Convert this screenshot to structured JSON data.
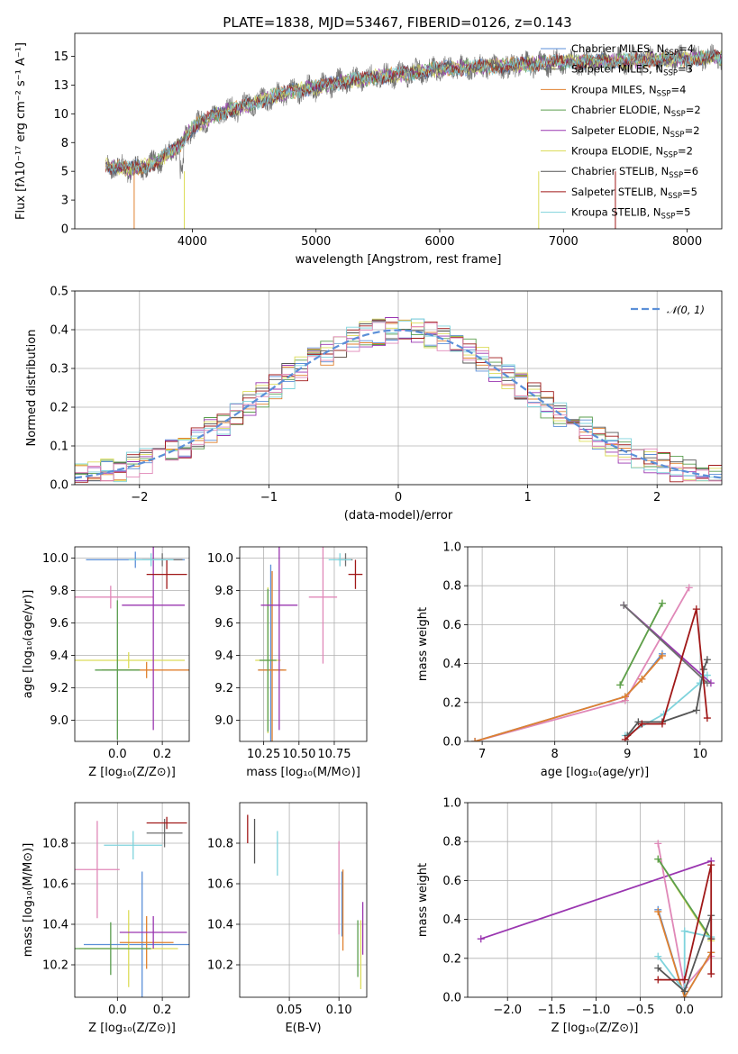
{
  "colors": [
    "#5b8fd8",
    "#6e6e6e",
    "#e0812f",
    "#5a9e4e",
    "#9a36b0",
    "#dcdc5a",
    "#555555",
    "#a01818",
    "#7fd3dc",
    "#e088b8"
  ],
  "chart_data": [
    {
      "id": "spectrum",
      "type": "line",
      "title": "PLATE=1838, MJD=53467, FIBERID=0126, z=0.143",
      "xlabel": "wavelength [Angstrom, rest frame]",
      "ylabel": "Flux [fλ10⁻¹⁷ erg cm⁻² s⁻¹ A⁻¹]",
      "xlim": [
        3050,
        8280
      ],
      "ylim": [
        0,
        17
      ],
      "xticks": [
        4000,
        5000,
        6000,
        7000,
        8000
      ],
      "yticks": [
        0.0,
        2.5,
        5.0,
        7.5,
        10.0,
        12.5,
        15.0
      ],
      "continuum_x": [
        3300,
        3500,
        3700,
        3900,
        4000,
        4200,
        4400,
        4600,
        4800,
        5000,
        5200,
        5500,
        5800,
        6000,
        6500,
        7000,
        7500,
        8000,
        8280
      ],
      "continuum_y": [
        5.5,
        5.2,
        5.7,
        7.3,
        8.8,
        10.0,
        10.6,
        11.3,
        12.0,
        12.3,
        12.8,
        13.2,
        13.6,
        13.9,
        14.2,
        14.5,
        14.6,
        14.8,
        14.9
      ],
      "legend": [
        {
          "name": "Chabrier MILES, N",
          "sub": "SSP",
          "n": "=4"
        },
        {
          "name": "Salpeter MILES, N",
          "sub": "SSP",
          "n": "=3"
        },
        {
          "name": "Kroupa MILES, N",
          "sub": "SSP",
          "n": "=4"
        },
        {
          "name": "Chabrier ELODIE, N",
          "sub": "SSP",
          "n": "=2"
        },
        {
          "name": "Salpeter ELODIE, N",
          "sub": "SSP",
          "n": "=2"
        },
        {
          "name": "Kroupa ELODIE, N",
          "sub": "SSP",
          "n": "=2"
        },
        {
          "name": "Chabrier STELIB, N",
          "sub": "SSP",
          "n": "=6"
        },
        {
          "name": "Salpeter STELIB, N",
          "sub": "SSP",
          "n": "=5"
        },
        {
          "name": "Kroupa STELIB, N",
          "sub": "SSP",
          "n": "=5"
        }
      ]
    },
    {
      "id": "residuals",
      "type": "histogram",
      "xlabel": "(data-model)/error",
      "ylabel": "Normed distribution",
      "xlim": [
        -2.5,
        2.5
      ],
      "ylim": [
        0,
        0.5
      ],
      "xticks": [
        -2,
        -1,
        0,
        1,
        2
      ],
      "yticks": [
        0.0,
        0.1,
        0.2,
        0.3,
        0.4,
        0.5
      ],
      "bin_width": 0.1,
      "legend_label": "𝒩(0, 1)"
    },
    {
      "id": "age-vs-Z",
      "type": "errorbar",
      "xlabel": "Z [log₁₀(Z/Z⊙)]",
      "ylabel": "age  [log₁₀(age/yr)]",
      "xlim": [
        -0.19,
        0.32
      ],
      "ylim": [
        8.87,
        10.07
      ],
      "xticks": [
        0.0,
        0.2
      ],
      "yticks": [
        9.0,
        9.2,
        9.4,
        9.6,
        9.8,
        10.0
      ],
      "points": [
        {
          "c": 0,
          "x": 0.08,
          "y": 9.99,
          "xe": 0.22,
          "ye": 0.05
        },
        {
          "c": 9,
          "x": -0.03,
          "y": 9.76,
          "xe": 0.19,
          "ye": 0.07
        },
        {
          "c": 5,
          "x": 0.05,
          "y": 9.37,
          "xe": 0.25,
          "ye": 0.05
        },
        {
          "c": 2,
          "x": 0.13,
          "y": 9.31,
          "xe": 0.2,
          "ye": 0.05
        },
        {
          "c": 3,
          "x": 0.0,
          "y": 9.31,
          "xe": 0.1,
          "ye": 0.43
        },
        {
          "c": 4,
          "x": 0.16,
          "y": 9.71,
          "xe": 0.14,
          "ye": 0.77
        },
        {
          "c": 1,
          "x": 0.2,
          "y": 9.99,
          "xe": 0.09,
          "ye": 0.04
        },
        {
          "c": 7,
          "x": 0.22,
          "y": 9.9,
          "xe": 0.09,
          "ye": 0.09
        },
        {
          "c": 8,
          "x": 0.15,
          "y": 9.99,
          "xe": 0.1,
          "ye": 0.04
        }
      ]
    },
    {
      "id": "age-vs-mass",
      "type": "errorbar",
      "xlabel": "mass [log₁₀(M/M⊙)]",
      "ylabel": "",
      "xlim": [
        10.08,
        10.98
      ],
      "ylim": [
        8.87,
        10.07
      ],
      "xticks": [
        10.25,
        10.5,
        10.75
      ],
      "yticks": [
        9.0,
        9.2,
        9.4,
        9.6,
        9.8,
        10.0
      ],
      "points": [
        {
          "c": 0,
          "x": 10.3,
          "y": 9.31,
          "xe": 0.09,
          "ye": 0.65
        },
        {
          "c": 9,
          "x": 10.67,
          "y": 9.76,
          "xe": 0.1,
          "ye": 0.41
        },
        {
          "c": 5,
          "x": 10.28,
          "y": 9.37,
          "xe": 0.09,
          "ye": 0.45
        },
        {
          "c": 2,
          "x": 10.31,
          "y": 9.31,
          "xe": 0.1,
          "ye": 0.61
        },
        {
          "c": 3,
          "x": 10.28,
          "y": 9.37,
          "xe": 0.06,
          "ye": 0.44
        },
        {
          "c": 4,
          "x": 10.36,
          "y": 9.71,
          "xe": 0.13,
          "ye": 0.77
        },
        {
          "c": 1,
          "x": 10.83,
          "y": 9.99,
          "xe": 0.05,
          "ye": 0.04
        },
        {
          "c": 7,
          "x": 10.9,
          "y": 9.9,
          "xe": 0.05,
          "ye": 0.09
        },
        {
          "c": 8,
          "x": 10.79,
          "y": 9.99,
          "xe": 0.08,
          "ye": 0.04
        }
      ]
    },
    {
      "id": "weight-vs-age",
      "type": "line",
      "xlabel": "age  [log₁₀(age/yr)]",
      "ylabel": "mass weight",
      "xlim": [
        6.8,
        10.3
      ],
      "ylim": [
        0,
        1
      ],
      "xticks": [
        7,
        8,
        9,
        10
      ],
      "yticks": [
        0.0,
        0.2,
        0.4,
        0.6,
        0.8,
        1.0
      ],
      "series": [
        {
          "c": 9,
          "x": [
            6.9,
            8.97,
            9.85
          ],
          "y": [
            0.0,
            0.21,
            0.79
          ]
        },
        {
          "c": 0,
          "x": [
            6.9,
            8.97,
            9.2,
            9.48
          ],
          "y": [
            0.0,
            0.23,
            0.32,
            0.45
          ]
        },
        {
          "c": 2,
          "x": [
            6.9,
            8.97,
            9.2,
            9.48
          ],
          "y": [
            0.0,
            0.23,
            0.32,
            0.44
          ]
        },
        {
          "c": 5,
          "x": [
            8.9,
            9.48
          ],
          "y": [
            0.29,
            0.71
          ]
        },
        {
          "c": 3,
          "x": [
            8.9,
            9.48
          ],
          "y": [
            0.29,
            0.71
          ]
        },
        {
          "c": 4,
          "x": [
            8.95,
            10.15
          ],
          "y": [
            0.7,
            0.3
          ]
        },
        {
          "c": 1,
          "x": [
            8.95,
            10.1
          ],
          "y": [
            0.7,
            0.3
          ]
        },
        {
          "c": 8,
          "x": [
            8.97,
            9.5,
            10.0,
            10.05,
            10.1
          ],
          "y": [
            0.03,
            0.14,
            0.3,
            0.34,
            0.34
          ]
        },
        {
          "c": 6,
          "x": [
            9.0,
            9.15,
            9.48,
            9.95,
            10.05,
            10.1
          ],
          "y": [
            0.03,
            0.1,
            0.1,
            0.16,
            0.37,
            0.42
          ]
        },
        {
          "c": 7,
          "x": [
            8.97,
            9.2,
            9.48,
            9.95,
            10.1
          ],
          "y": [
            0.01,
            0.09,
            0.09,
            0.68,
            0.12
          ]
        }
      ]
    },
    {
      "id": "mass-vs-Z",
      "type": "errorbar",
      "xlabel": "Z [log₁₀(Z/Z⊙)]",
      "ylabel": "mass [log₁₀(M/M⊙)]",
      "xlim": [
        -0.19,
        0.32
      ],
      "ylim": [
        10.04,
        11.0
      ],
      "xticks": [
        0.0,
        0.2
      ],
      "yticks": [
        10.2,
        10.4,
        10.6,
        10.8
      ],
      "points": [
        {
          "c": 0,
          "x": 0.11,
          "y": 10.3,
          "xe": 0.26,
          "ye": 0.36
        },
        {
          "c": 9,
          "x": -0.09,
          "y": 10.67,
          "xe": 0.1,
          "ye": 0.24
        },
        {
          "c": 5,
          "x": 0.05,
          "y": 10.28,
          "xe": 0.22,
          "ye": 0.19
        },
        {
          "c": 2,
          "x": 0.13,
          "y": 10.31,
          "xe": 0.12,
          "ye": 0.13
        },
        {
          "c": 3,
          "x": -0.03,
          "y": 10.28,
          "xe": 0.18,
          "ye": 0.13
        },
        {
          "c": 4,
          "x": 0.16,
          "y": 10.36,
          "xe": 0.15,
          "ye": 0.08
        },
        {
          "c": 1,
          "x": 0.21,
          "y": 10.85,
          "xe": 0.08,
          "ye": 0.07
        },
        {
          "c": 7,
          "x": 0.22,
          "y": 10.9,
          "xe": 0.09,
          "ye": 0.03
        },
        {
          "c": 8,
          "x": 0.07,
          "y": 10.79,
          "xe": 0.13,
          "ye": 0.07
        }
      ]
    },
    {
      "id": "mass-vs-EBV",
      "type": "errorbar",
      "xlabel": "E(B-V)",
      "ylabel": "",
      "xlim": [
        0.0,
        0.128
      ],
      "ylim": [
        10.04,
        11.0
      ],
      "xticks": [
        0.05,
        0.1
      ],
      "yticks": [
        10.2,
        10.4,
        10.6,
        10.8
      ],
      "points": [
        {
          "c": 0,
          "x": 0.103,
          "y": 10.5,
          "xe": 0,
          "ye": 0.16
        },
        {
          "c": 9,
          "x": 0.1,
          "y": 10.58,
          "xe": 0,
          "ye": 0.23
        },
        {
          "c": 5,
          "x": 0.122,
          "y": 10.25,
          "xe": 0,
          "ye": 0.17
        },
        {
          "c": 2,
          "x": 0.104,
          "y": 10.47,
          "xe": 0,
          "ye": 0.2
        },
        {
          "c": 3,
          "x": 0.119,
          "y": 10.28,
          "xe": 0,
          "ye": 0.14
        },
        {
          "c": 4,
          "x": 0.124,
          "y": 10.38,
          "xe": 0,
          "ye": 0.13
        },
        {
          "c": 6,
          "x": 0.015,
          "y": 10.81,
          "xe": 0,
          "ye": 0.11
        },
        {
          "c": 7,
          "x": 0.008,
          "y": 10.87,
          "xe": 0,
          "ye": 0.07
        },
        {
          "c": 8,
          "x": 0.038,
          "y": 10.75,
          "xe": 0,
          "ye": 0.11
        }
      ]
    },
    {
      "id": "weight-vs-Z",
      "type": "line",
      "xlabel": "Z [log₁₀(Z/Z⊙)]",
      "ylabel": "mass weight",
      "xlim": [
        -2.45,
        0.42
      ],
      "ylim": [
        0,
        1
      ],
      "xticks": [
        -2.0,
        -1.5,
        -1.0,
        -0.5,
        0.0
      ],
      "yticks": [
        0.0,
        0.2,
        0.4,
        0.6,
        0.8,
        1.0
      ],
      "series": [
        {
          "c": 4,
          "x": [
            -2.3,
            0.3
          ],
          "y": [
            0.3,
            0.7
          ]
        },
        {
          "c": 9,
          "x": [
            -0.3,
            0.0,
            0.3
          ],
          "y": [
            0.79,
            0.05,
            0.21
          ]
        },
        {
          "c": 5,
          "x": [
            -0.3,
            0.3
          ],
          "y": [
            0.71,
            0.29
          ]
        },
        {
          "c": 3,
          "x": [
            -0.3,
            0.3
          ],
          "y": [
            0.71,
            0.3
          ]
        },
        {
          "c": 0,
          "x": [
            -0.3,
            0.0,
            0.3
          ],
          "y": [
            0.45,
            0.0,
            0.23
          ]
        },
        {
          "c": 2,
          "x": [
            -0.3,
            0.0,
            0.3
          ],
          "y": [
            0.44,
            0.0,
            0.23
          ]
        },
        {
          "c": 8,
          "x": [
            -0.3,
            0.0,
            0.0,
            0.3
          ],
          "y": [
            0.21,
            0.03,
            0.34,
            0.31
          ]
        },
        {
          "c": 6,
          "x": [
            -0.3,
            0.0,
            0.3,
            0.3
          ],
          "y": [
            0.15,
            0.03,
            0.42,
            0.3
          ]
        },
        {
          "c": 7,
          "x": [
            -0.3,
            0.0,
            0.3,
            0.3
          ],
          "y": [
            0.09,
            0.09,
            0.68,
            0.12
          ]
        }
      ]
    }
  ]
}
